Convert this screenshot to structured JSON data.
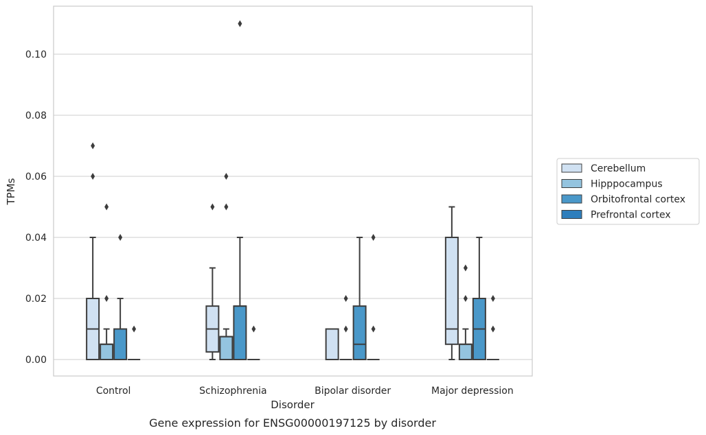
{
  "chart_data": {
    "type": "box",
    "title": "",
    "caption": "Gene expression for ENSG00000197125 by disorder",
    "xlabel": "Disorder",
    "ylabel": "TPMs",
    "ylim": [
      -0.0055,
      0.116
    ],
    "yticks": [
      "0.00",
      "0.02",
      "0.04",
      "0.06",
      "0.08",
      "0.10"
    ],
    "grid": true,
    "legend_position": "right",
    "categories": [
      "Control",
      "Schizophrenia",
      "Bipolar disorder",
      "Major depression"
    ],
    "series": [
      {
        "name": "Cerebellum",
        "color": "#d0e1f2",
        "boxes": [
          {
            "q1": 0.0,
            "median": 0.01,
            "q3": 0.02,
            "whislo": 0.0,
            "whishi": 0.04,
            "fliers": [
              0.06,
              0.07
            ]
          },
          {
            "q1": 0.0025,
            "median": 0.01,
            "q3": 0.0175,
            "whislo": 0.0,
            "whishi": 0.03,
            "fliers": [
              0.05
            ]
          },
          {
            "q1": 0.0,
            "median": 0.0,
            "q3": 0.01,
            "whislo": 0.0,
            "whishi": 0.01,
            "fliers": []
          },
          {
            "q1": 0.005,
            "median": 0.01,
            "q3": 0.04,
            "whislo": 0.0,
            "whishi": 0.05,
            "fliers": []
          }
        ]
      },
      {
        "name": "Hipppocampus",
        "color": "#94c4df",
        "boxes": [
          {
            "q1": 0.0,
            "median": 0.005,
            "q3": 0.005,
            "whislo": 0.0,
            "whishi": 0.01,
            "fliers": [
              0.02,
              0.05
            ]
          },
          {
            "q1": 0.0,
            "median": 0.0075,
            "q3": 0.0075,
            "whislo": 0.0,
            "whishi": 0.01,
            "fliers": [
              0.05,
              0.06
            ]
          },
          {
            "q1": 0.0,
            "median": 0.0,
            "q3": 0.0,
            "whislo": 0.0,
            "whishi": 0.0,
            "fliers": [
              0.01,
              0.02
            ]
          },
          {
            "q1": 0.0,
            "median": 0.005,
            "q3": 0.005,
            "whislo": 0.0,
            "whishi": 0.01,
            "fliers": [
              0.02,
              0.03
            ]
          }
        ]
      },
      {
        "name": "Orbitofrontal cortex",
        "color": "#4a98c9",
        "boxes": [
          {
            "q1": 0.0,
            "median": 0.01,
            "q3": 0.01,
            "whislo": 0.0,
            "whishi": 0.02,
            "fliers": [
              0.04
            ]
          },
          {
            "q1": 0.0,
            "median": 0.0175,
            "q3": 0.0175,
            "whislo": 0.0,
            "whishi": 0.04,
            "fliers": [
              0.11
            ]
          },
          {
            "q1": 0.0,
            "median": 0.005,
            "q3": 0.0175,
            "whislo": 0.0,
            "whishi": 0.04,
            "fliers": []
          },
          {
            "q1": 0.0,
            "median": 0.01,
            "q3": 0.02,
            "whislo": 0.0,
            "whishi": 0.04,
            "fliers": []
          }
        ]
      },
      {
        "name": "Prefrontal cortex",
        "color": "#2e7ebc",
        "boxes": [
          {
            "q1": 0.0,
            "median": 0.0,
            "q3": 0.0,
            "whislo": 0.0,
            "whishi": 0.0,
            "fliers": [
              0.01
            ]
          },
          {
            "q1": 0.0,
            "median": 0.0,
            "q3": 0.0,
            "whislo": 0.0,
            "whishi": 0.0,
            "fliers": [
              0.01
            ]
          },
          {
            "q1": 0.0,
            "median": 0.0,
            "q3": 0.0,
            "whislo": 0.0,
            "whishi": 0.0,
            "fliers": [
              0.01,
              0.04
            ]
          },
          {
            "q1": 0.0,
            "median": 0.0,
            "q3": 0.0,
            "whislo": 0.0,
            "whishi": 0.0,
            "fliers": [
              0.01,
              0.02
            ]
          }
        ]
      }
    ]
  }
}
